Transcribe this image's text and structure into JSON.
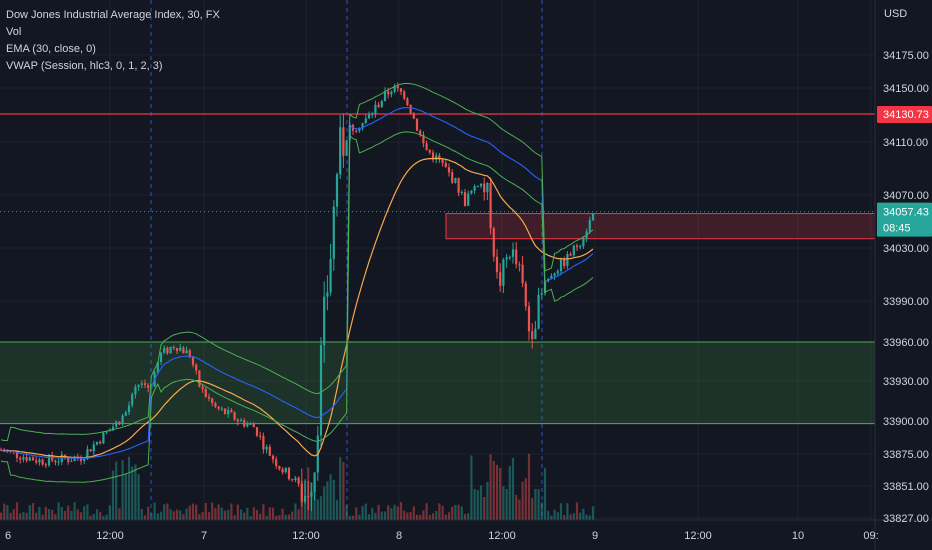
{
  "legend": {
    "title": "Dow Jones Industrial Average Index, 30, FX",
    "vol": "Vol",
    "ema": "EMA (30, close, 0)",
    "vwap": "VWAP (Session, hlc3, 0, 1, 2, 3)"
  },
  "colors": {
    "background": "#131722",
    "up": "#26a69a",
    "down": "#ef5350",
    "grid": "#1e222d",
    "session_line": "#2962ff",
    "ema": "#f7a94b",
    "vwap": "#2962ff",
    "band": "#4caf50",
    "resistance": "#f23645",
    "support_zone": "#4caf50"
  },
  "chart_data": {
    "type": "candlestick",
    "currency": "USD",
    "y_ticks": [
      "34175.00",
      "34150.00",
      "34110.00",
      "34070.00",
      "34030.00",
      "33990.00",
      "33960.00",
      "33930.00",
      "33900.00",
      "33875.00",
      "33851.00",
      "33827.00"
    ],
    "y_tick_values": [
      34175,
      34150,
      34110,
      34070,
      34030,
      33990,
      33960,
      33930,
      33900,
      33875,
      33851,
      33827
    ],
    "x_ticks": [
      "6",
      "12:00",
      "7",
      "12:00",
      "8",
      "12:00",
      "9",
      "12:00",
      "10",
      "09:"
    ],
    "ylim": [
      33827,
      34205
    ],
    "resistance_line": {
      "value": 34130.73,
      "label": "34130.73"
    },
    "support_zone": {
      "top": 33960,
      "bottom": 33898
    },
    "resistance_zone": {
      "top": 34056,
      "bottom": 34037
    },
    "last_price": {
      "value": 34057.43,
      "label": "34057.43",
      "countdown": "08:45"
    }
  }
}
